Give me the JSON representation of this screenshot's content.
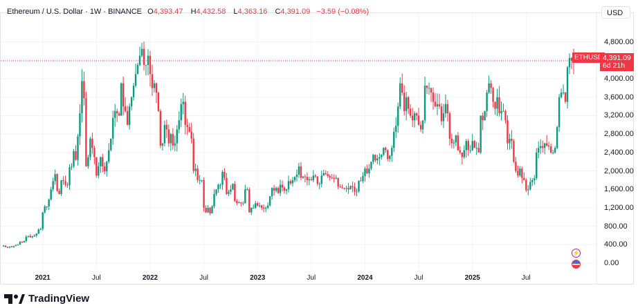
{
  "header": {
    "title": "Ethereum / U.S. Dollar · 1W · BINANCE",
    "open_label": "O",
    "open": "4,393.47",
    "high_label": "H",
    "high": "4,432.58",
    "low_label": "L",
    "low": "4,363.16",
    "close_label": "C",
    "close": "4,391.09",
    "change": "−3.59 (−0.08%)"
  },
  "currency_button": "USD",
  "price_tag": {
    "symbol": "ETHUSD",
    "price": "4,391.09",
    "countdown": "6d 21h"
  },
  "brand": "TradingView",
  "icons": [
    "lightning-event-icon",
    "us-flag-event-icon"
  ],
  "colors": {
    "up": "#089981",
    "down": "#f23645",
    "grid": "#f0f3fa"
  },
  "chart_data": {
    "type": "candlestick",
    "title": "Ethereum / U.S. Dollar · 1W · BINANCE",
    "interval": "1W",
    "ylim": [
      -250,
      5300
    ],
    "yticks": [
      "0.00",
      "400.00",
      "800.00",
      "1,200.00",
      "1,600.00",
      "2,000.00",
      "2,400.00",
      "2,800.00",
      "3,200.00",
      "3,600.00",
      "4,000.00",
      "4,800.00"
    ],
    "ytick_values": [
      0,
      400,
      800,
      1200,
      1600,
      2000,
      2400,
      2800,
      3200,
      3600,
      4000,
      4800
    ],
    "xticks": [
      {
        "label": "2021",
        "week": 19,
        "bold": true
      },
      {
        "label": "Jul",
        "week": 45,
        "bold": false
      },
      {
        "label": "2022",
        "week": 71,
        "bold": true
      },
      {
        "label": "Jul",
        "week": 97,
        "bold": false
      },
      {
        "label": "2023",
        "week": 123,
        "bold": true
      },
      {
        "label": "Jul",
        "week": 149,
        "bold": false
      },
      {
        "label": "2024",
        "week": 175,
        "bold": true
      },
      {
        "label": "Jul",
        "week": 201,
        "bold": false
      },
      {
        "label": "2025",
        "week": 227,
        "bold": true
      },
      {
        "label": "Jul",
        "week": 253,
        "bold": false
      }
    ],
    "last_price": 4391.09,
    "weekly_close": [
      380,
      350,
      340,
      360,
      350,
      370,
      390,
      400,
      460,
      450,
      480,
      570,
      590,
      560,
      580,
      600,
      640,
      730,
      740,
      1100,
      1230,
      1230,
      1380,
      1600,
      1780,
      1930,
      1570,
      1500,
      1800,
      1780,
      1700,
      1690,
      2080,
      2100,
      2430,
      2240,
      2750,
      3250,
      3950,
      3580,
      2100,
      2300,
      2700,
      2500,
      2300,
      1900,
      2100,
      2300,
      2100,
      1990,
      2200,
      2450,
      2700,
      3150,
      3300,
      3250,
      3200,
      3900,
      3400,
      3300,
      3000,
      3400,
      3600,
      3850,
      4100,
      4300,
      4500,
      4650,
      4300,
      4300,
      4500,
      4100,
      3800,
      3900,
      3700,
      3300,
      2550,
      2600,
      3000,
      2900,
      2600,
      2800,
      2550,
      2600,
      2900,
      3100,
      3450,
      3500,
      3000,
      2950,
      2850,
      2700,
      2000,
      2050,
      1800,
      1800,
      1800,
      1200,
      1100,
      1200,
      1080,
      1230,
      1500,
      1600,
      1700,
      1700,
      1980,
      1850,
      1500,
      1550,
      1600,
      1720,
      1350,
      1300,
      1320,
      1300,
      1300,
      1600,
      1600,
      1100,
      1200,
      1200,
      1300,
      1250,
      1250,
      1200,
      1180,
      1200,
      1250,
      1450,
      1630,
      1570,
      1630,
      1520,
      1700,
      1640,
      1570,
      1600,
      1780,
      1730,
      1800,
      1870,
      1920,
      2100,
      1850,
      1880,
      1870,
      1800,
      1820,
      1800,
      1900,
      1880,
      1720,
      1720,
      1900,
      1950,
      1930,
      1890,
      1860,
      1850,
      1830,
      1850,
      1660,
      1640,
      1630,
      1620,
      1630,
      1600,
      1670,
      1650,
      1550,
      1560,
      1790,
      1780,
      1890,
      2050,
      1950,
      2050,
      2200,
      2350,
      2230,
      2270,
      2300,
      2350,
      2500,
      2450,
      2260,
      2330,
      2500,
      2850,
      2980,
      3400,
      3900,
      3700,
      3300,
      3600,
      3350,
      3200,
      3100,
      3250,
      3200,
      3000,
      2900,
      3100,
      3850,
      3800,
      3800,
      3700,
      3500,
      3400,
      3450,
      3400,
      3080,
      3250,
      3450,
      3250,
      2700,
      2600,
      2620,
      2770,
      2450,
      2400,
      2300,
      2450,
      2650,
      2450,
      2450,
      2650,
      2500,
      2500,
      2400,
      3200,
      3100,
      3300,
      3700,
      3900,
      3800,
      3500,
      3350,
      3600,
      3250,
      3300,
      3300,
      3100,
      2600,
      2700,
      2650,
      2200,
      2000,
      1900,
      2050,
      1850,
      1800,
      1580,
      1600,
      1760,
      1800,
      1840,
      2400,
      2500,
      2540,
      2500,
      2600,
      2550,
      2530,
      2400,
      2400,
      2500,
      2950,
      3600,
      3700,
      3700,
      3500,
      4250,
      4450,
      4393.47,
      4391.09
    ]
  }
}
